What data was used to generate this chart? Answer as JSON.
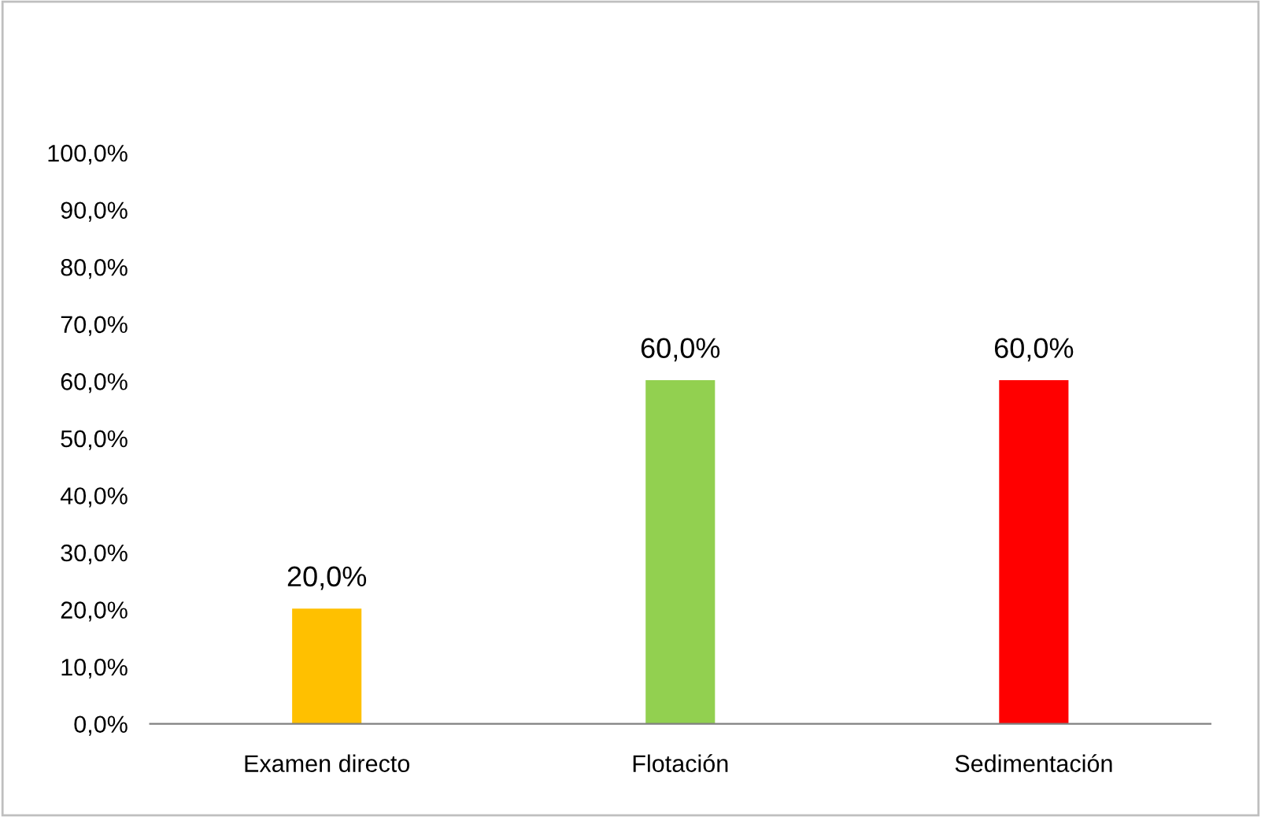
{
  "chart_data": {
    "type": "bar",
    "categories": [
      "Examen directo",
      "Flotación",
      "Sedimentación"
    ],
    "values": [
      20,
      60,
      60
    ],
    "colors": [
      "#ffc000",
      "#92d050",
      "#ff0000"
    ],
    "value_labels": [
      "20,0%",
      "60,0%",
      "60,0%"
    ],
    "ylim": [
      0,
      100
    ],
    "yticks": [
      {
        "value": 0,
        "label": "0,0%"
      },
      {
        "value": 10,
        "label": "10,0%"
      },
      {
        "value": 20,
        "label": "20,0%"
      },
      {
        "value": 30,
        "label": "30,0%"
      },
      {
        "value": 40,
        "label": "40,0%"
      },
      {
        "value": 50,
        "label": "50,0%"
      },
      {
        "value": 60,
        "label": "60,0%"
      },
      {
        "value": 70,
        "label": "70,0%"
      },
      {
        "value": 80,
        "label": "80,0%"
      },
      {
        "value": 90,
        "label": "90,0%"
      },
      {
        "value": 100,
        "label": "100,0%"
      }
    ],
    "grid": false,
    "legend": false
  }
}
